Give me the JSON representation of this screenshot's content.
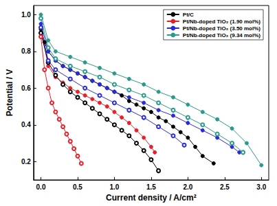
{
  "chart_data": {
    "type": "line",
    "x_label": "Current density / A/cm²",
    "y_label": "Potential / V",
    "xlim": [
      -0.1,
      3.1
    ],
    "xticks": [
      {
        "value": 0,
        "label": "0.0"
      },
      {
        "value": 0.5,
        "label": "0.5"
      },
      {
        "value": 1,
        "label": "1.0"
      },
      {
        "value": 1.5,
        "label": "1.5"
      },
      {
        "value": 2,
        "label": "2.0"
      },
      {
        "value": 2.5,
        "label": "2.5"
      },
      {
        "value": 3,
        "label": "3.0"
      }
    ],
    "ylim": [
      0.1,
      1.05
    ],
    "yticks": [
      0.2,
      0.4,
      0.6,
      0.8,
      {
        "value": 1,
        "label": "1.0"
      }
    ],
    "grid": false,
    "legend": "top-right",
    "series": [
      {
        "name": "Pt/C",
        "color": "#000000",
        "marker": "circle",
        "x": [
          0,
          0.05,
          0.1,
          0.2,
          0.3,
          0.4,
          0.5,
          0.6,
          0.7,
          0.8,
          0.9,
          1.0,
          1.1,
          1.2,
          1.3,
          1.4,
          1.5,
          1.6,
          1.7,
          1.8,
          1.9,
          2.0,
          2.1,
          2.2,
          2.35
        ],
        "values": [
          0.92,
          0.85,
          0.8,
          0.75,
          0.72,
          0.7,
          0.68,
          0.66,
          0.64,
          0.62,
          0.6,
          0.58,
          0.56,
          0.53,
          0.51,
          0.49,
          0.47,
          0.44,
          0.42,
          0.39,
          0.36,
          0.33,
          0.28,
          0.23,
          0.19
        ]
      },
      {
        "name": "Pt/Nb-doped TiO₂ (1.90 mol%)",
        "color": "#e8202a",
        "marker": "circle",
        "x": [
          0,
          0.1,
          0.2,
          0.3,
          0.4,
          0.5,
          0.6,
          0.7,
          0.8,
          0.9,
          1.0,
          1.1,
          1.2,
          1.3,
          1.4,
          1.5,
          1.55
        ],
        "values": [
          0.93,
          0.72,
          0.66,
          0.63,
          0.6,
          0.58,
          0.56,
          0.54,
          0.52,
          0.5,
          0.47,
          0.44,
          0.41,
          0.37,
          0.33,
          0.28,
          0.25
        ]
      },
      {
        "name": "Pt/Nb-doped TiO₂ (3.50 mol%)",
        "color": "#2a2ad8",
        "marker": "circle",
        "x": [
          0,
          0.1,
          0.2,
          0.3,
          0.4,
          0.5,
          0.6,
          0.7,
          0.8,
          0.9,
          1.0,
          1.2,
          1.4,
          1.6,
          1.8,
          2.0,
          2.2,
          2.4,
          2.6,
          2.7
        ],
        "values": [
          0.95,
          0.8,
          0.75,
          0.72,
          0.7,
          0.68,
          0.66,
          0.64,
          0.62,
          0.6,
          0.58,
          0.55,
          0.52,
          0.48,
          0.45,
          0.41,
          0.37,
          0.33,
          0.28,
          0.25
        ]
      },
      {
        "name": "Pt/Nb-doped TiO₂ (9.34 mol%)",
        "color": "#2a9a8a",
        "marker": "circle",
        "x": [
          0,
          0.1,
          0.2,
          0.4,
          0.6,
          0.8,
          1.0,
          1.2,
          1.4,
          1.6,
          1.8,
          2.0,
          2.2,
          2.4,
          2.6,
          2.8,
          3.0
        ],
        "values": [
          1.0,
          0.86,
          0.8,
          0.77,
          0.74,
          0.71,
          0.68,
          0.65,
          0.62,
          0.58,
          0.55,
          0.51,
          0.47,
          0.43,
          0.38,
          0.3,
          0.18
        ]
      },
      {
        "name": "Pt/C",
        "color": "#000000",
        "marker": "circle-open",
        "x": [
          0,
          0.1,
          0.2,
          0.3,
          0.4,
          0.5,
          0.6,
          0.7,
          0.8,
          0.9,
          1.0,
          1.1,
          1.2,
          1.3,
          1.4,
          1.5,
          1.6
        ],
        "values": [
          0.9,
          0.74,
          0.67,
          0.62,
          0.58,
          0.55,
          0.52,
          0.49,
          0.46,
          0.43,
          0.4,
          0.37,
          0.34,
          0.3,
          0.26,
          0.21,
          0.15
        ]
      },
      {
        "name": "Pt/Nb-doped TiO₂ (1.90 mol%)",
        "color": "#e8202a",
        "marker": "circle-open",
        "x": [
          0,
          0.05,
          0.1,
          0.15,
          0.2,
          0.25,
          0.3,
          0.35,
          0.4,
          0.45,
          0.5,
          0.55
        ],
        "values": [
          0.88,
          0.7,
          0.6,
          0.52,
          0.47,
          0.43,
          0.39,
          0.35,
          0.31,
          0.27,
          0.23,
          0.19
        ]
      },
      {
        "name": "Pt/Nb-doped TiO₂ (3.50 mol%)",
        "color": "#2a2ad8",
        "marker": "circle-open",
        "x": [
          0,
          0.1,
          0.2,
          0.4,
          0.6,
          0.8,
          1.0,
          1.2,
          1.4,
          1.6,
          1.8,
          1.95
        ],
        "values": [
          0.93,
          0.75,
          0.7,
          0.65,
          0.6,
          0.56,
          0.52,
          0.48,
          0.44,
          0.39,
          0.34,
          0.29
        ]
      },
      {
        "name": "Pt/Nb-doped TiO₂ (9.34 mol%)",
        "color": "#2a9a8a",
        "marker": "circle-open",
        "x": [
          0,
          0.1,
          0.2,
          0.4,
          0.6,
          0.8,
          1.0,
          1.2,
          1.4,
          1.6,
          1.8,
          2.0,
          2.2,
          2.4,
          2.6,
          2.75
        ],
        "values": [
          0.98,
          0.82,
          0.76,
          0.72,
          0.69,
          0.66,
          0.62,
          0.59,
          0.56,
          0.52,
          0.48,
          0.44,
          0.4,
          0.35,
          0.3,
          0.25
        ]
      }
    ]
  }
}
